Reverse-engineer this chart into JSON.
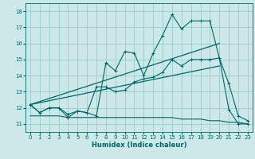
{
  "xlabel": "Humidex (Indice chaleur)",
  "xlim": [
    -0.5,
    23.5
  ],
  "ylim": [
    10.5,
    18.5
  ],
  "xticks": [
    0,
    1,
    2,
    3,
    4,
    5,
    6,
    7,
    8,
    9,
    10,
    11,
    12,
    13,
    14,
    15,
    16,
    17,
    18,
    19,
    20,
    21,
    22,
    23
  ],
  "yticks": [
    11,
    12,
    13,
    14,
    15,
    16,
    17,
    18
  ],
  "background_color": "#cce8e8",
  "grid_color": "#99cccc",
  "line_color": "#006666",
  "line1_x": [
    0,
    1,
    2,
    3,
    4,
    5,
    6,
    7,
    8,
    9,
    10,
    11,
    12,
    13,
    14,
    15,
    16,
    17,
    18,
    19,
    20,
    21,
    22,
    23
  ],
  "line1_y": [
    12.2,
    11.7,
    12.0,
    12.0,
    11.4,
    11.8,
    11.7,
    11.5,
    14.8,
    14.3,
    15.5,
    15.4,
    14.0,
    15.4,
    16.5,
    17.8,
    16.9,
    17.4,
    17.4,
    17.4,
    15.1,
    11.9,
    11.0,
    11.0
  ],
  "line2_x": [
    0,
    1,
    2,
    3,
    4,
    5,
    6,
    7,
    8,
    9,
    10,
    11,
    12,
    13,
    14,
    15,
    16,
    17,
    18,
    19,
    20,
    21,
    22,
    23
  ],
  "line2_y": [
    12.2,
    11.7,
    12.0,
    12.0,
    11.6,
    11.8,
    11.7,
    13.3,
    13.3,
    13.0,
    13.1,
    13.6,
    13.8,
    13.9,
    14.2,
    15.0,
    14.6,
    15.0,
    15.0,
    15.0,
    15.1,
    13.5,
    11.5,
    11.2
  ],
  "line3_x": [
    0,
    20
  ],
  "line3_y": [
    12.2,
    16.0
  ],
  "line4_x": [
    0,
    20
  ],
  "line4_y": [
    12.2,
    14.6
  ],
  "line5_x": [
    0,
    1,
    2,
    3,
    4,
    5,
    6,
    7,
    8,
    9,
    10,
    11,
    12,
    13,
    14,
    15,
    16,
    17,
    18,
    19,
    20,
    21,
    22,
    23
  ],
  "line5_y": [
    11.5,
    11.5,
    11.5,
    11.5,
    11.4,
    11.4,
    11.4,
    11.4,
    11.4,
    11.4,
    11.4,
    11.4,
    11.4,
    11.4,
    11.4,
    11.4,
    11.3,
    11.3,
    11.3,
    11.2,
    11.2,
    11.1,
    11.1,
    11.0
  ]
}
